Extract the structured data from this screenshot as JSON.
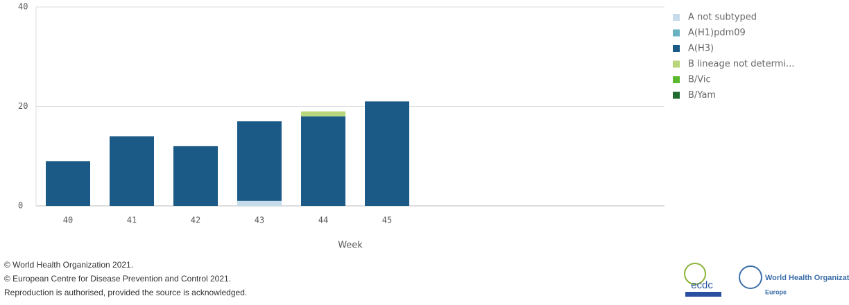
{
  "chart_data": {
    "type": "stacked_bar",
    "x_label": "Week",
    "categories": [
      "40",
      "41",
      "42",
      "43",
      "44",
      "45",
      null,
      null,
      null,
      null
    ],
    "series": [
      {
        "name": "A not subtyped",
        "color": "#c6dceb",
        "values": [
          0,
          0,
          0,
          1,
          0,
          0,
          null,
          null,
          null,
          null
        ]
      },
      {
        "name": "A(H1)pdm09",
        "color": "#6ab1c1",
        "values": [
          0,
          0,
          0,
          0,
          0,
          0,
          null,
          null,
          null,
          null
        ]
      },
      {
        "name": "A(H3)",
        "color": "#1b5a86",
        "values": [
          9,
          14,
          12,
          16,
          18,
          21,
          null,
          null,
          null,
          null
        ]
      },
      {
        "name": "B lineage not determi...",
        "color": "#b7d67c",
        "values": [
          0,
          0,
          0,
          0,
          1,
          0,
          null,
          null,
          null,
          null
        ]
      },
      {
        "name": "B/Vic",
        "color": "#5cb82e",
        "values": [
          0,
          0,
          0,
          0,
          0,
          0,
          null,
          null,
          null,
          null
        ]
      },
      {
        "name": "B/Yam",
        "color": "#1f6b30",
        "values": [
          0,
          0,
          0,
          0,
          0,
          0,
          null,
          null,
          null,
          null
        ]
      }
    ],
    "ylim": [
      0,
      40
    ],
    "yticks": [
      0,
      20,
      40
    ],
    "grid": true,
    "legend": "right"
  },
  "footer": {
    "lines": [
      "© World Health Organization 2021.",
      "© European Centre for Disease Prevention and Control 2021.",
      "Reproduction is authorised, provided the source is acknowledged."
    ],
    "logos": [
      "ecdc",
      "World Health Organization",
      "Europe"
    ]
  }
}
